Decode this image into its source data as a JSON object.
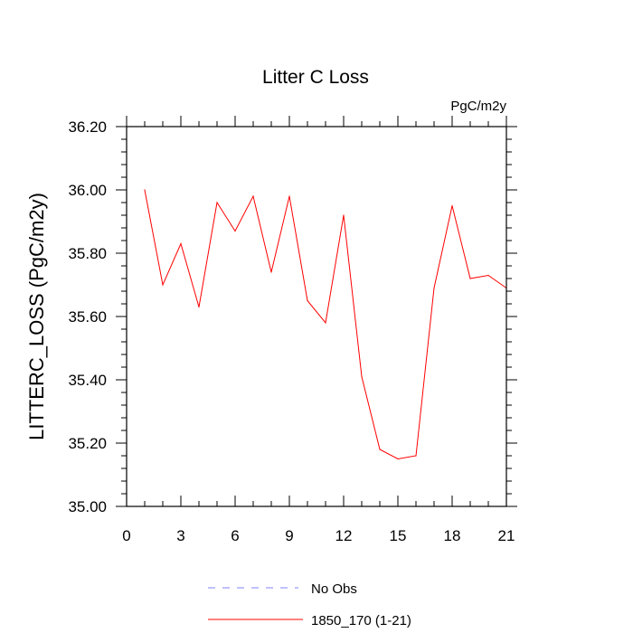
{
  "chart_data": {
    "type": "line",
    "title": "Litter C Loss",
    "units_label": "PgC/m2y",
    "ylabel": "LITTERC_LOSS  (PgC/m2y)",
    "xlabel": "",
    "xlim": [
      0,
      21
    ],
    "ylim": [
      35.0,
      36.2
    ],
    "xticks": [
      0,
      3,
      6,
      9,
      12,
      15,
      18,
      21
    ],
    "xtick_labels": [
      "0",
      "3",
      "6",
      "9",
      "12",
      "15",
      "18",
      "21"
    ],
    "yticks": [
      35.0,
      35.2,
      35.4,
      35.6,
      35.8,
      36.0,
      36.2
    ],
    "ytick_labels": [
      "35.00",
      "35.20",
      "35.40",
      "35.60",
      "35.80",
      "36.00",
      "36.20"
    ],
    "grid": false,
    "legend_position": "bottom",
    "series": [
      {
        "name": "No Obs",
        "color": "#8080ff",
        "dash": "dashed",
        "x": [],
        "y": []
      },
      {
        "name": "1850_170 (1-21)",
        "color": "#ff0000",
        "dash": "solid",
        "x": [
          1,
          2,
          3,
          4,
          5,
          6,
          7,
          8,
          9,
          10,
          11,
          12,
          13,
          14,
          15,
          16,
          17,
          18,
          19,
          20,
          21
        ],
        "y": [
          36.0,
          35.7,
          35.83,
          35.63,
          35.96,
          35.87,
          35.98,
          35.74,
          35.98,
          35.65,
          35.58,
          35.92,
          35.41,
          35.18,
          35.15,
          35.16,
          35.69,
          35.95,
          35.72,
          35.73,
          35.69
        ]
      }
    ]
  }
}
